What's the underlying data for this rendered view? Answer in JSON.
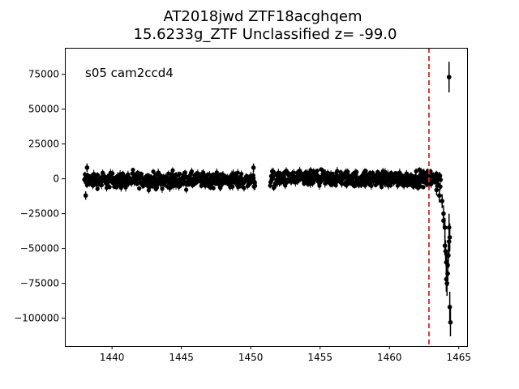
{
  "chart_data": {
    "type": "scatter",
    "title_line1": "AT2018jwd  ZTF18acghqem",
    "title_line2": "15.6233g_ZTF Unclassified z= -99.0",
    "annotation": "s05 cam2ccd4",
    "xlabel": "",
    "ylabel": "",
    "xlim": [
      1436.6,
      1465.6
    ],
    "ylim": [
      -120000,
      94000
    ],
    "x_ticks": [
      1440,
      1445,
      1450,
      1455,
      1460,
      1465
    ],
    "y_ticks": [
      75000,
      50000,
      25000,
      0,
      -25000,
      -50000,
      -75000,
      -100000
    ],
    "x_tick_labels": [
      "1440",
      "1445",
      "1450",
      "1455",
      "1460",
      "1465"
    ],
    "y_tick_labels": [
      "75000",
      "50000",
      "25000",
      "0",
      "−25000",
      "−50000",
      "−75000",
      "−100000"
    ],
    "vertical_line": {
      "x": 1462.85,
      "style": "dashed",
      "color": "#d62728"
    },
    "grid": false,
    "colors": {
      "points": "#000000",
      "vline": "#d62728",
      "axes": "#000000"
    },
    "dense_segments": [
      {
        "x_start": 1438.0,
        "x_end": 1450.3,
        "y_center": -1000,
        "y_spread": 4500
      },
      {
        "x_start": 1451.4,
        "x_end": 1463.7,
        "y_center": 0,
        "y_spread": 4500
      }
    ],
    "series": [
      {
        "x": [
          1438.1,
          1438.2,
          1450.2,
          1450.3,
          1463.4,
          1463.6,
          1463.8,
          1463.9,
          1463.9,
          1464.0,
          1464.0,
          1464.05,
          1464.1,
          1464.1,
          1464.15,
          1464.2,
          1464.2,
          1464.25,
          1464.3,
          1464.3,
          1464.35,
          1464.35,
          1464.4,
          1464.3
        ],
        "y": [
          -12000,
          8000,
          8000,
          -5000,
          -8000,
          -12000,
          -16000,
          -25000,
          -30000,
          -35000,
          -48000,
          -52000,
          -60000,
          -72000,
          -75000,
          -68000,
          -62000,
          -55000,
          -45000,
          -35000,
          -42000,
          -92000,
          -103000,
          73000
        ],
        "yerr": [
          3000,
          3000,
          3000,
          3000,
          4000,
          5000,
          5000,
          6000,
          6000,
          7000,
          7000,
          8000,
          8000,
          9000,
          9000,
          9000,
          9000,
          9000,
          10000,
          10000,
          10000,
          11000,
          10000,
          11000
        ]
      }
    ]
  }
}
